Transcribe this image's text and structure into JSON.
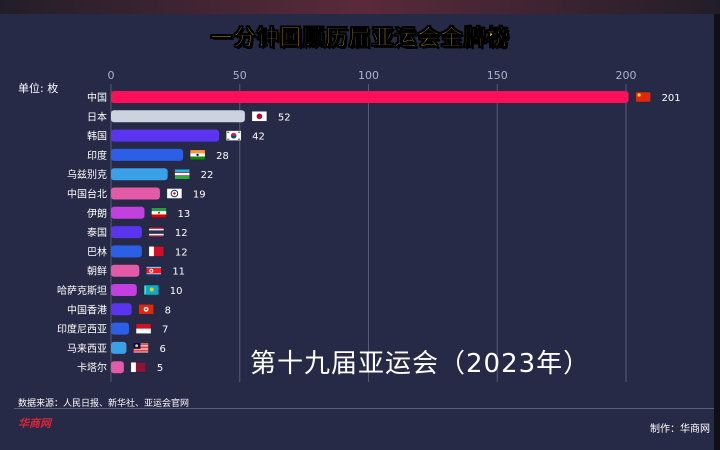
{
  "title": "一分钟回顾历届亚运会金牌榜",
  "unit_label": "单位: 枚",
  "edition_label": "第十九届亚运会（2023年）",
  "source_label": "数据来源：人民日报、新华社、亚运会官网",
  "logo_text": "华商网",
  "credit_label": "制作：华商网",
  "chart_data": {
    "type": "bar",
    "orientation": "horizontal",
    "title": "一分钟回顾历届亚运会金牌榜",
    "xlabel": "",
    "ylabel": "单位: 枚",
    "xlim": [
      0,
      210
    ],
    "x_ticks": [
      0,
      50,
      100,
      150,
      200
    ],
    "grid": true,
    "axis_position": "top",
    "categories": [
      "中国",
      "日本",
      "韩国",
      "印度",
      "乌兹别克",
      "中国台北",
      "伊朗",
      "泰国",
      "巴林",
      "朝鲜",
      "哈萨克斯坦",
      "中国香港",
      "印度尼西亚",
      "马来西亚",
      "卡塔尔"
    ],
    "values": [
      201,
      52,
      42,
      28,
      22,
      19,
      13,
      12,
      12,
      11,
      10,
      8,
      7,
      6,
      5
    ],
    "colors": [
      "#ff0f5a",
      "#ccd2de",
      "#5b34f0",
      "#2b5fe6",
      "#3aa0e8",
      "#e25aa8",
      "#c23fe0",
      "#5b34f0",
      "#2b5fe6",
      "#e25aa8",
      "#c23fe0",
      "#5b34f0",
      "#2b5fe6",
      "#3aa0e8",
      "#e25aa8"
    ],
    "flags": [
      "china-flag-icon",
      "japan-flag-icon",
      "korea-flag-icon",
      "india-flag-icon",
      "uzbekistan-flag-icon",
      "chinese-taipei-flag-icon",
      "iran-flag-icon",
      "thailand-flag-icon",
      "bahrain-flag-icon",
      "north-korea-flag-icon",
      "kazakhstan-flag-icon",
      "hong-kong-flag-icon",
      "indonesia-flag-icon",
      "malaysia-flag-icon",
      "qatar-flag-icon"
    ]
  }
}
